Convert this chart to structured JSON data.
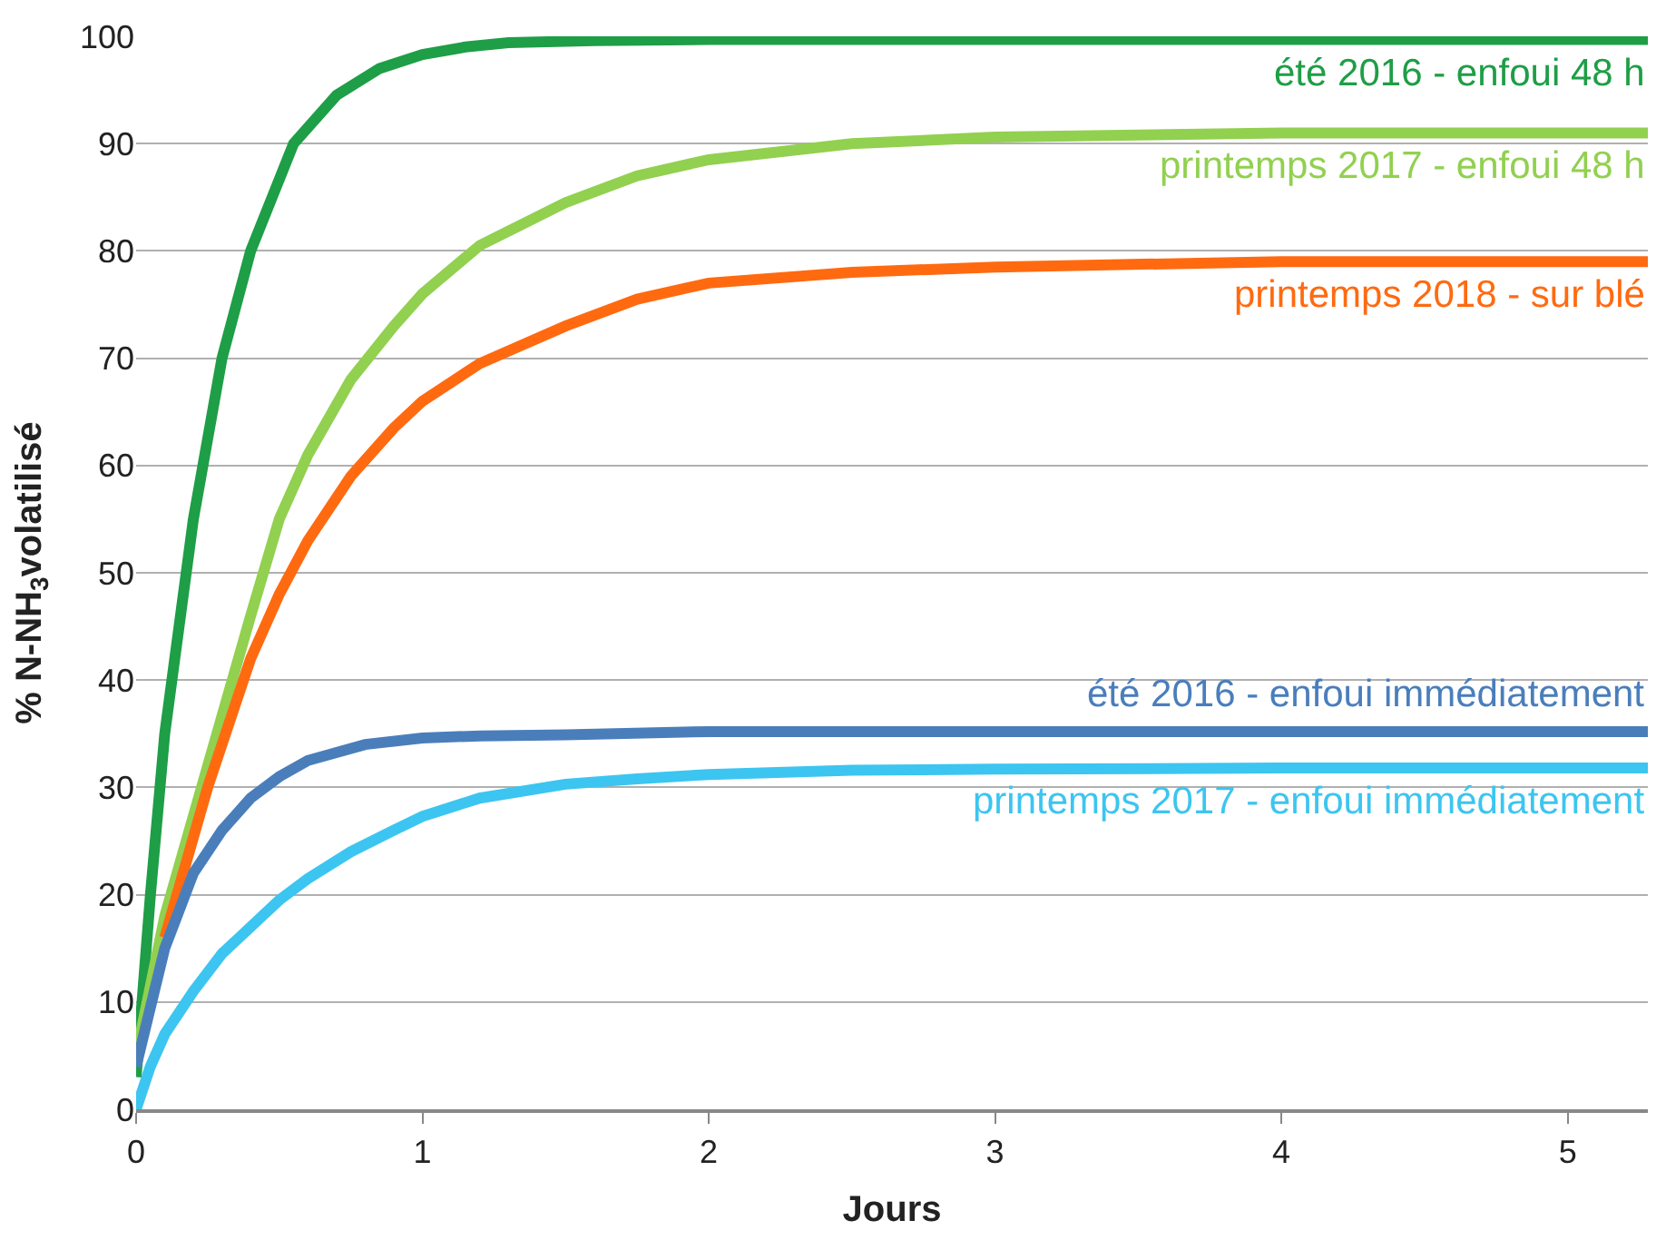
{
  "chart_data": {
    "type": "line",
    "xlabel": "Jours",
    "ylabel": "% N-NH$_{3}$volatilisé",
    "xlim": [
      0,
      5.28
    ],
    "xticks": [
      0,
      1,
      2,
      3,
      4,
      5
    ],
    "ylim": [
      0,
      100
    ],
    "yticks": [
      0,
      10,
      20,
      30,
      40,
      50,
      60,
      70,
      80,
      90,
      100
    ],
    "grid": "y",
    "legend": false,
    "marker": "none",
    "line_style": "solid",
    "series": [
      {
        "name": "été 2016 - enfoui 48 h",
        "color": "#1e9e46",
        "x": [
          0,
          0.05,
          0.1,
          0.2,
          0.3,
          0.4,
          0.55,
          0.7,
          0.85,
          1,
          1.15,
          1.3,
          1.6,
          2,
          3,
          4,
          5.28
        ],
        "values": [
          3,
          20,
          35,
          55,
          70,
          80,
          90,
          94.5,
          97,
          98.3,
          99,
          99.4,
          99.6,
          99.7,
          99.7,
          99.7,
          99.7
        ]
      },
      {
        "name": "printemps 2017 - enfoui 48 h",
        "color": "#92d050",
        "x": [
          0,
          0.1,
          0.25,
          0.4,
          0.5,
          0.6,
          0.75,
          0.9,
          1,
          1.2,
          1.5,
          1.75,
          2,
          2.5,
          3,
          4,
          5.28
        ],
        "values": [
          5,
          18,
          32,
          46,
          55,
          61,
          68,
          73,
          76,
          80.5,
          84.5,
          87,
          88.5,
          90,
          90.6,
          91,
          91
        ]
      },
      {
        "name": "printemps 2018 - sur blé",
        "color": "#ff6a10",
        "x": [
          0.1,
          0.25,
          0.4,
          0.5,
          0.6,
          0.75,
          0.9,
          1,
          1.2,
          1.5,
          1.75,
          2,
          2.5,
          3,
          4,
          5.28
        ],
        "values": [
          16,
          30,
          42,
          48,
          53,
          59,
          63.5,
          66,
          69.5,
          73,
          75.5,
          77,
          78,
          78.5,
          79,
          79
        ]
      },
      {
        "name": "été 2016 - enfoui immédiatement",
        "color": "#4a7ebb",
        "x": [
          0,
          0.1,
          0.2,
          0.3,
          0.4,
          0.5,
          0.6,
          0.8,
          1,
          1.2,
          1.5,
          2,
          3,
          4,
          5.28
        ],
        "values": [
          4,
          15,
          22,
          26,
          29,
          31,
          32.5,
          34,
          34.6,
          34.8,
          34.9,
          35.2,
          35.2,
          35.2,
          35.2
        ]
      },
      {
        "name": "printemps 2017 - enfoui immédiatement",
        "color": "#3cc5f0",
        "x": [
          0,
          0.05,
          0.1,
          0.2,
          0.3,
          0.4,
          0.5,
          0.6,
          0.75,
          0.9,
          1,
          1.2,
          1.5,
          1.75,
          2,
          2.5,
          3,
          4,
          5.28
        ],
        "values": [
          0,
          4,
          7,
          11,
          14.5,
          17,
          19.5,
          21.5,
          24,
          26,
          27.3,
          29,
          30.3,
          30.8,
          31.2,
          31.6,
          31.7,
          31.8,
          31.8
        ]
      }
    ]
  }
}
